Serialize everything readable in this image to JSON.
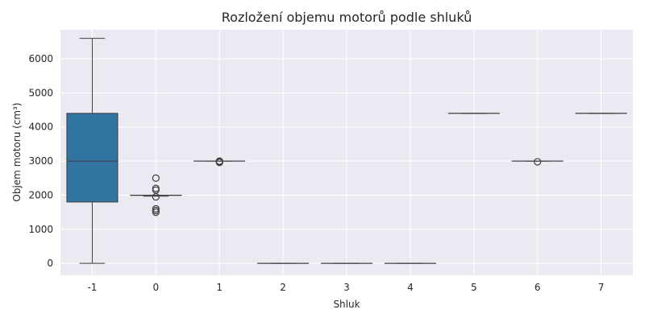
{
  "chart_data": {
    "type": "box",
    "title": "Rozložení objemu motorů podle shluků",
    "xlabel": "Shluk",
    "ylabel": "Objem motoru (cm³)",
    "ylim": [
      -350,
      6850
    ],
    "yticks": [
      0,
      1000,
      2000,
      3000,
      4000,
      5000,
      6000
    ],
    "grid": true,
    "style": {
      "background": "#EAEAF2",
      "grid_color": "#FFFFFF",
      "box_color": "#3274A1",
      "line_color": "#3F3F3F"
    },
    "categories": [
      "-1",
      "0",
      "1",
      "2",
      "3",
      "4",
      "5",
      "6",
      "7"
    ],
    "boxes": [
      {
        "category": "-1",
        "whisker_low": 0,
        "q1": 1800,
        "median": 3000,
        "q3": 4400,
        "whisker_high": 6600,
        "outliers": []
      },
      {
        "category": "0",
        "whisker_low": 1970,
        "q1": 1995,
        "median": 1995,
        "q3": 2000,
        "whisker_high": 2000,
        "outliers": [
          1500,
          1550,
          1600,
          1950,
          2150,
          2200,
          2500
        ]
      },
      {
        "category": "1",
        "whisker_low": 3000,
        "q1": 3000,
        "median": 3000,
        "q3": 3000,
        "whisker_high": 3000,
        "outliers": [
          2960,
          2980,
          3000
        ]
      },
      {
        "category": "2",
        "whisker_low": 0,
        "q1": 0,
        "median": 0,
        "q3": 0,
        "whisker_high": 0,
        "outliers": []
      },
      {
        "category": "3",
        "whisker_low": 0,
        "q1": 0,
        "median": 0,
        "q3": 0,
        "whisker_high": 0,
        "outliers": []
      },
      {
        "category": "4",
        "whisker_low": 0,
        "q1": 0,
        "median": 0,
        "q3": 0,
        "whisker_high": 0,
        "outliers": []
      },
      {
        "category": "5",
        "whisker_low": 4400,
        "q1": 4400,
        "median": 4400,
        "q3": 4400,
        "whisker_high": 4400,
        "outliers": []
      },
      {
        "category": "6",
        "whisker_low": 3000,
        "q1": 3000,
        "median": 3000,
        "q3": 3000,
        "whisker_high": 3000,
        "outliers": [
          2980
        ]
      },
      {
        "category": "7",
        "whisker_low": 4400,
        "q1": 4400,
        "median": 4400,
        "q3": 4400,
        "whisker_high": 4400,
        "outliers": []
      }
    ]
  }
}
